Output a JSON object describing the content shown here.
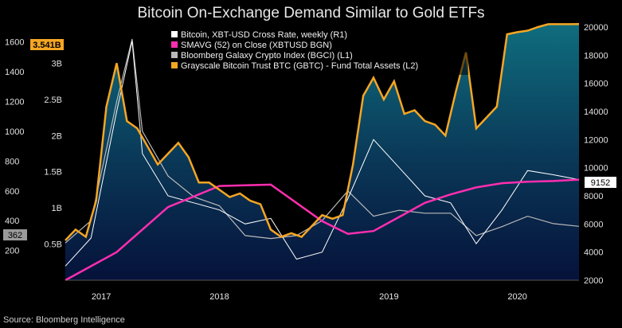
{
  "title": "Bitcoin On-Exchange Demand Similar to Gold ETFs",
  "source": "Source: Bloomberg Intelligence",
  "chart_data": {
    "type": "line",
    "x_categories": [
      "2017",
      "2018",
      "2019",
      "2020"
    ],
    "legend": [
      {
        "label": "Bitcoin, XBT-USD Cross Rate, weekly (R1)",
        "color": "#ffffff"
      },
      {
        "label": "SMAVG (52)  on Close (XBTUSD BGN)",
        "color": "#ff2eb0"
      },
      {
        "label": "Bloomberg Galaxy Crypto Index (BGCI) (L1)",
        "color": "#b9b9b9"
      },
      {
        "label": "Grayscale Bitcoin Trust BTC (GBTC) - Fund Total Assets (L2)",
        "color": "#f5a623"
      }
    ],
    "axes": {
      "left_outer": {
        "ticks": [
          "1600",
          "1400",
          "1200",
          "1000",
          "800",
          "600",
          "400",
          "200"
        ],
        "range": [
          0,
          1700
        ]
      },
      "left_inner": {
        "ticks": [
          "3B",
          "2.5B",
          "2B",
          "1.5B",
          "1B",
          "0.5B"
        ],
        "range": [
          0,
          3.5
        ]
      },
      "right": {
        "ticks": [
          "20000",
          "18000",
          "16000",
          "14000",
          "12000",
          "10000",
          "8000",
          "6000",
          "4000",
          "2000"
        ],
        "range": [
          2000,
          20000
        ]
      }
    },
    "badges": {
      "gbtc_last": "3.541B",
      "btc_last": "9152",
      "bgci_last": "362"
    },
    "series": [
      {
        "name": "Grayscale Bitcoin Trust BTC (GBTC) - Fund Total Assets (L2)",
        "axis": "left_inner",
        "unit": "B",
        "x": [
          0,
          0.02,
          0.04,
          0.06,
          0.08,
          0.1,
          0.12,
          0.14,
          0.16,
          0.18,
          0.2,
          0.22,
          0.24,
          0.26,
          0.28,
          0.3,
          0.32,
          0.34,
          0.36,
          0.38,
          0.4,
          0.42,
          0.44,
          0.46,
          0.48,
          0.5,
          0.52,
          0.54,
          0.56,
          0.58,
          0.6,
          0.62,
          0.64,
          0.66,
          0.68,
          0.7,
          0.72,
          0.74,
          0.76,
          0.78,
          0.8,
          0.82,
          0.84,
          0.86,
          0.88,
          0.9,
          0.92,
          0.94,
          0.96,
          0.98,
          1.0
        ],
        "values": [
          0.55,
          0.7,
          0.6,
          1.1,
          2.4,
          3.0,
          2.2,
          2.1,
          1.85,
          1.6,
          1.75,
          1.9,
          1.7,
          1.35,
          1.35,
          1.25,
          1.15,
          1.2,
          1.1,
          1.05,
          0.7,
          0.6,
          0.65,
          0.6,
          0.75,
          0.9,
          0.85,
          0.9,
          1.6,
          2.55,
          2.8,
          2.5,
          2.75,
          2.3,
          2.35,
          2.2,
          2.15,
          2.0,
          2.6,
          3.15,
          2.1,
          2.25,
          2.4,
          3.4,
          3.43,
          3.45,
          3.5,
          3.54,
          3.54,
          3.54,
          3.541
        ]
      },
      {
        "name": "Bloomberg Galaxy Crypto Index (BGCI) (L1)",
        "axis": "left_outer",
        "x": [
          0,
          0.05,
          0.1,
          0.13,
          0.15,
          0.2,
          0.25,
          0.3,
          0.35,
          0.4,
          0.45,
          0.5,
          0.55,
          0.6,
          0.65,
          0.7,
          0.75,
          0.8,
          0.85,
          0.9,
          0.95,
          1.0
        ],
        "values": [
          250,
          400,
          1200,
          1620,
          1000,
          700,
          560,
          500,
          300,
          280,
          300,
          400,
          600,
          430,
          470,
          450,
          450,
          300,
          360,
          430,
          380,
          362
        ]
      },
      {
        "name": "SMAVG (52)  on Close (XBTUSD BGN)",
        "axis": "right",
        "x": [
          0,
          0.1,
          0.2,
          0.3,
          0.4,
          0.5,
          0.55,
          0.6,
          0.65,
          0.7,
          0.75,
          0.8,
          0.85,
          0.9,
          0.95,
          1.0
        ],
        "values": [
          2000,
          4000,
          7200,
          8700,
          8800,
          6200,
          5300,
          5500,
          6500,
          7500,
          8100,
          8600,
          8900,
          9000,
          9050,
          9152
        ]
      },
      {
        "name": "Bitcoin, XBT-USD Cross Rate, weekly (R1)",
        "axis": "right",
        "x": [
          0,
          0.05,
          0.1,
          0.13,
          0.15,
          0.2,
          0.25,
          0.3,
          0.35,
          0.4,
          0.45,
          0.5,
          0.55,
          0.6,
          0.65,
          0.7,
          0.75,
          0.8,
          0.85,
          0.9,
          0.95,
          1.0
        ],
        "values": [
          3000,
          5000,
          14000,
          19000,
          11000,
          8000,
          7500,
          7000,
          6000,
          6400,
          3500,
          4000,
          7800,
          12000,
          10000,
          8000,
          7500,
          4600,
          7000,
          9800,
          9500,
          9152
        ]
      }
    ]
  }
}
